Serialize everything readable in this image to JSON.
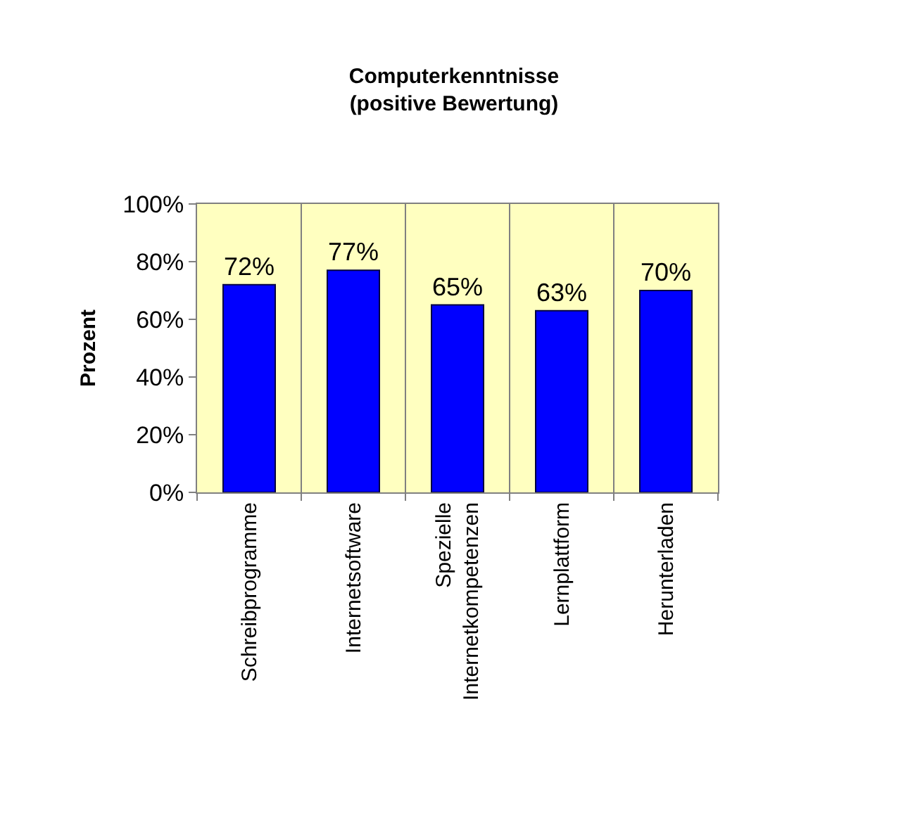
{
  "chart_data": {
    "type": "bar",
    "title": "Computerkenntnisse\n(positive Bewertung)",
    "ylabel": "Prozent",
    "categories": [
      "Schreibprogramme",
      "Internetsoftware",
      "Spezielle\nInternetkompetenzen",
      "Lernplattform",
      "Herunterladen"
    ],
    "values": [
      72,
      77,
      65,
      63,
      70
    ],
    "value_labels": [
      "72%",
      "77%",
      "65%",
      "63%",
      "70%"
    ],
    "color": "#0000ff",
    "ylim": [
      0,
      100
    ],
    "yticks": [
      {
        "value": 0,
        "label": "0%"
      },
      {
        "value": 20,
        "label": "20%"
      },
      {
        "value": 40,
        "label": "40%"
      },
      {
        "value": 60,
        "label": "60%"
      },
      {
        "value": 80,
        "label": "80%"
      },
      {
        "value": 100,
        "label": "100%"
      }
    ],
    "grid": "x"
  }
}
